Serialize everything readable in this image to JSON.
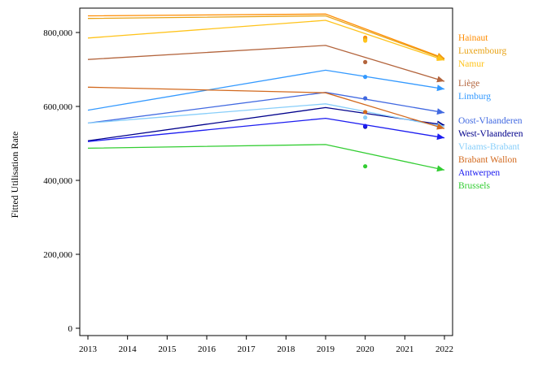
{
  "chart_data": {
    "type": "line",
    "title": "",
    "xlabel": "",
    "ylabel": "Fitted Utilisation Rate",
    "xlim": [
      2013,
      2022
    ],
    "ylim": [
      0,
      870000
    ],
    "x_ticks": [
      2013,
      2014,
      2015,
      2016,
      2017,
      2018,
      2019,
      2020,
      2021,
      2022
    ],
    "y_ticks": [
      0,
      200000,
      400000,
      600000,
      800000
    ],
    "y_tick_labels": [
      "0",
      "200,000",
      "400,000",
      "600,000",
      "800,000"
    ],
    "grid": false,
    "legend": "right, labels placed at series endpoints",
    "x": [
      2013,
      2019,
      2022
    ],
    "observed_x": 2020,
    "series": [
      {
        "name": "Hainaut",
        "color": "#ff8c00",
        "values": [
          845000,
          850000,
          730000
        ],
        "observed": 786000
      },
      {
        "name": "Luxembourg",
        "color": "#e8a317",
        "values": [
          838000,
          845000,
          728000
        ],
        "observed": 782000
      },
      {
        "name": "Namur",
        "color": "#ffc31a",
        "values": [
          785000,
          833000,
          725000
        ],
        "observed": 778000
      },
      {
        "name": "Liège",
        "color": "#b3643c",
        "values": [
          727000,
          765000,
          668000
        ],
        "observed": 720000
      },
      {
        "name": "Limburg",
        "color": "#3399ff",
        "values": [
          590000,
          698000,
          647000
        ],
        "observed": 680000
      },
      {
        "name": "Oost-Vlaanderen",
        "color": "#4169e1",
        "values": [
          555000,
          638000,
          583000
        ],
        "observed": 622000
      },
      {
        "name": "West-Vlaanderen",
        "color": "#00008b",
        "values": [
          507000,
          597000,
          550000
        ],
        "observed": 545000
      },
      {
        "name": "Vlaams-Brabant",
        "color": "#87cefa",
        "values": [
          555000,
          607000,
          545000
        ],
        "observed": 570000
      },
      {
        "name": "Brabant Wallon",
        "color": "#d2691e",
        "values": [
          652000,
          637000,
          540000
        ],
        "observed": 585000
      },
      {
        "name": "Antwerpen",
        "color": "#1c1cf0",
        "values": [
          505000,
          568000,
          515000
        ],
        "observed": 547000
      },
      {
        "name": "Brussels",
        "color": "#32cd32",
        "values": [
          487000,
          497000,
          428000
        ],
        "observed": 438000
      }
    ]
  }
}
